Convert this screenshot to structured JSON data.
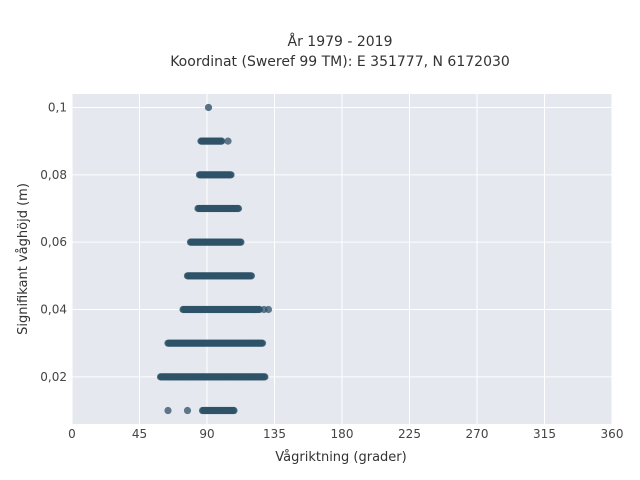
{
  "chart_data": {
    "type": "scatter",
    "title": "År 1979 - 2019",
    "subtitle": "Koordinat (Sweref 99 TM): E 351777, N 6172030",
    "xlabel": "Vågriktning (grader)",
    "ylabel": "Signifikant våghöjd (m)",
    "xlim": [
      0,
      360
    ],
    "ylim": [
      0.006,
      0.104
    ],
    "xticks": [
      0,
      45,
      90,
      135,
      180,
      225,
      270,
      315,
      360
    ],
    "yticks": [
      0.02,
      0.04,
      0.06,
      0.08,
      0.1
    ],
    "ytick_labels": [
      "0,02",
      "0,04",
      "0,06",
      "0,08",
      "0,1"
    ],
    "grid": true,
    "background_color": "#e5e8ef",
    "marker_color": "#2e5268",
    "bands": [
      {
        "y": 0.01,
        "x_min": 87,
        "x_max": 108,
        "outliers": [
          64,
          77
        ]
      },
      {
        "y": 0.02,
        "x_min": 59,
        "x_max": 129,
        "outliers": []
      },
      {
        "y": 0.03,
        "x_min": 64,
        "x_max": 127,
        "outliers": []
      },
      {
        "y": 0.04,
        "x_min": 74,
        "x_max": 125,
        "outliers": [
          128,
          131
        ]
      },
      {
        "y": 0.05,
        "x_min": 77,
        "x_max": 120,
        "outliers": []
      },
      {
        "y": 0.06,
        "x_min": 79,
        "x_max": 113,
        "outliers": []
      },
      {
        "y": 0.07,
        "x_min": 84,
        "x_max": 111,
        "outliers": []
      },
      {
        "y": 0.08,
        "x_min": 85,
        "x_max": 106,
        "outliers": []
      },
      {
        "y": 0.09,
        "x_min": 86,
        "x_max": 100,
        "outliers": [
          104
        ]
      },
      {
        "y": 0.1,
        "x_min": 91,
        "x_max": 91,
        "outliers": []
      }
    ]
  }
}
